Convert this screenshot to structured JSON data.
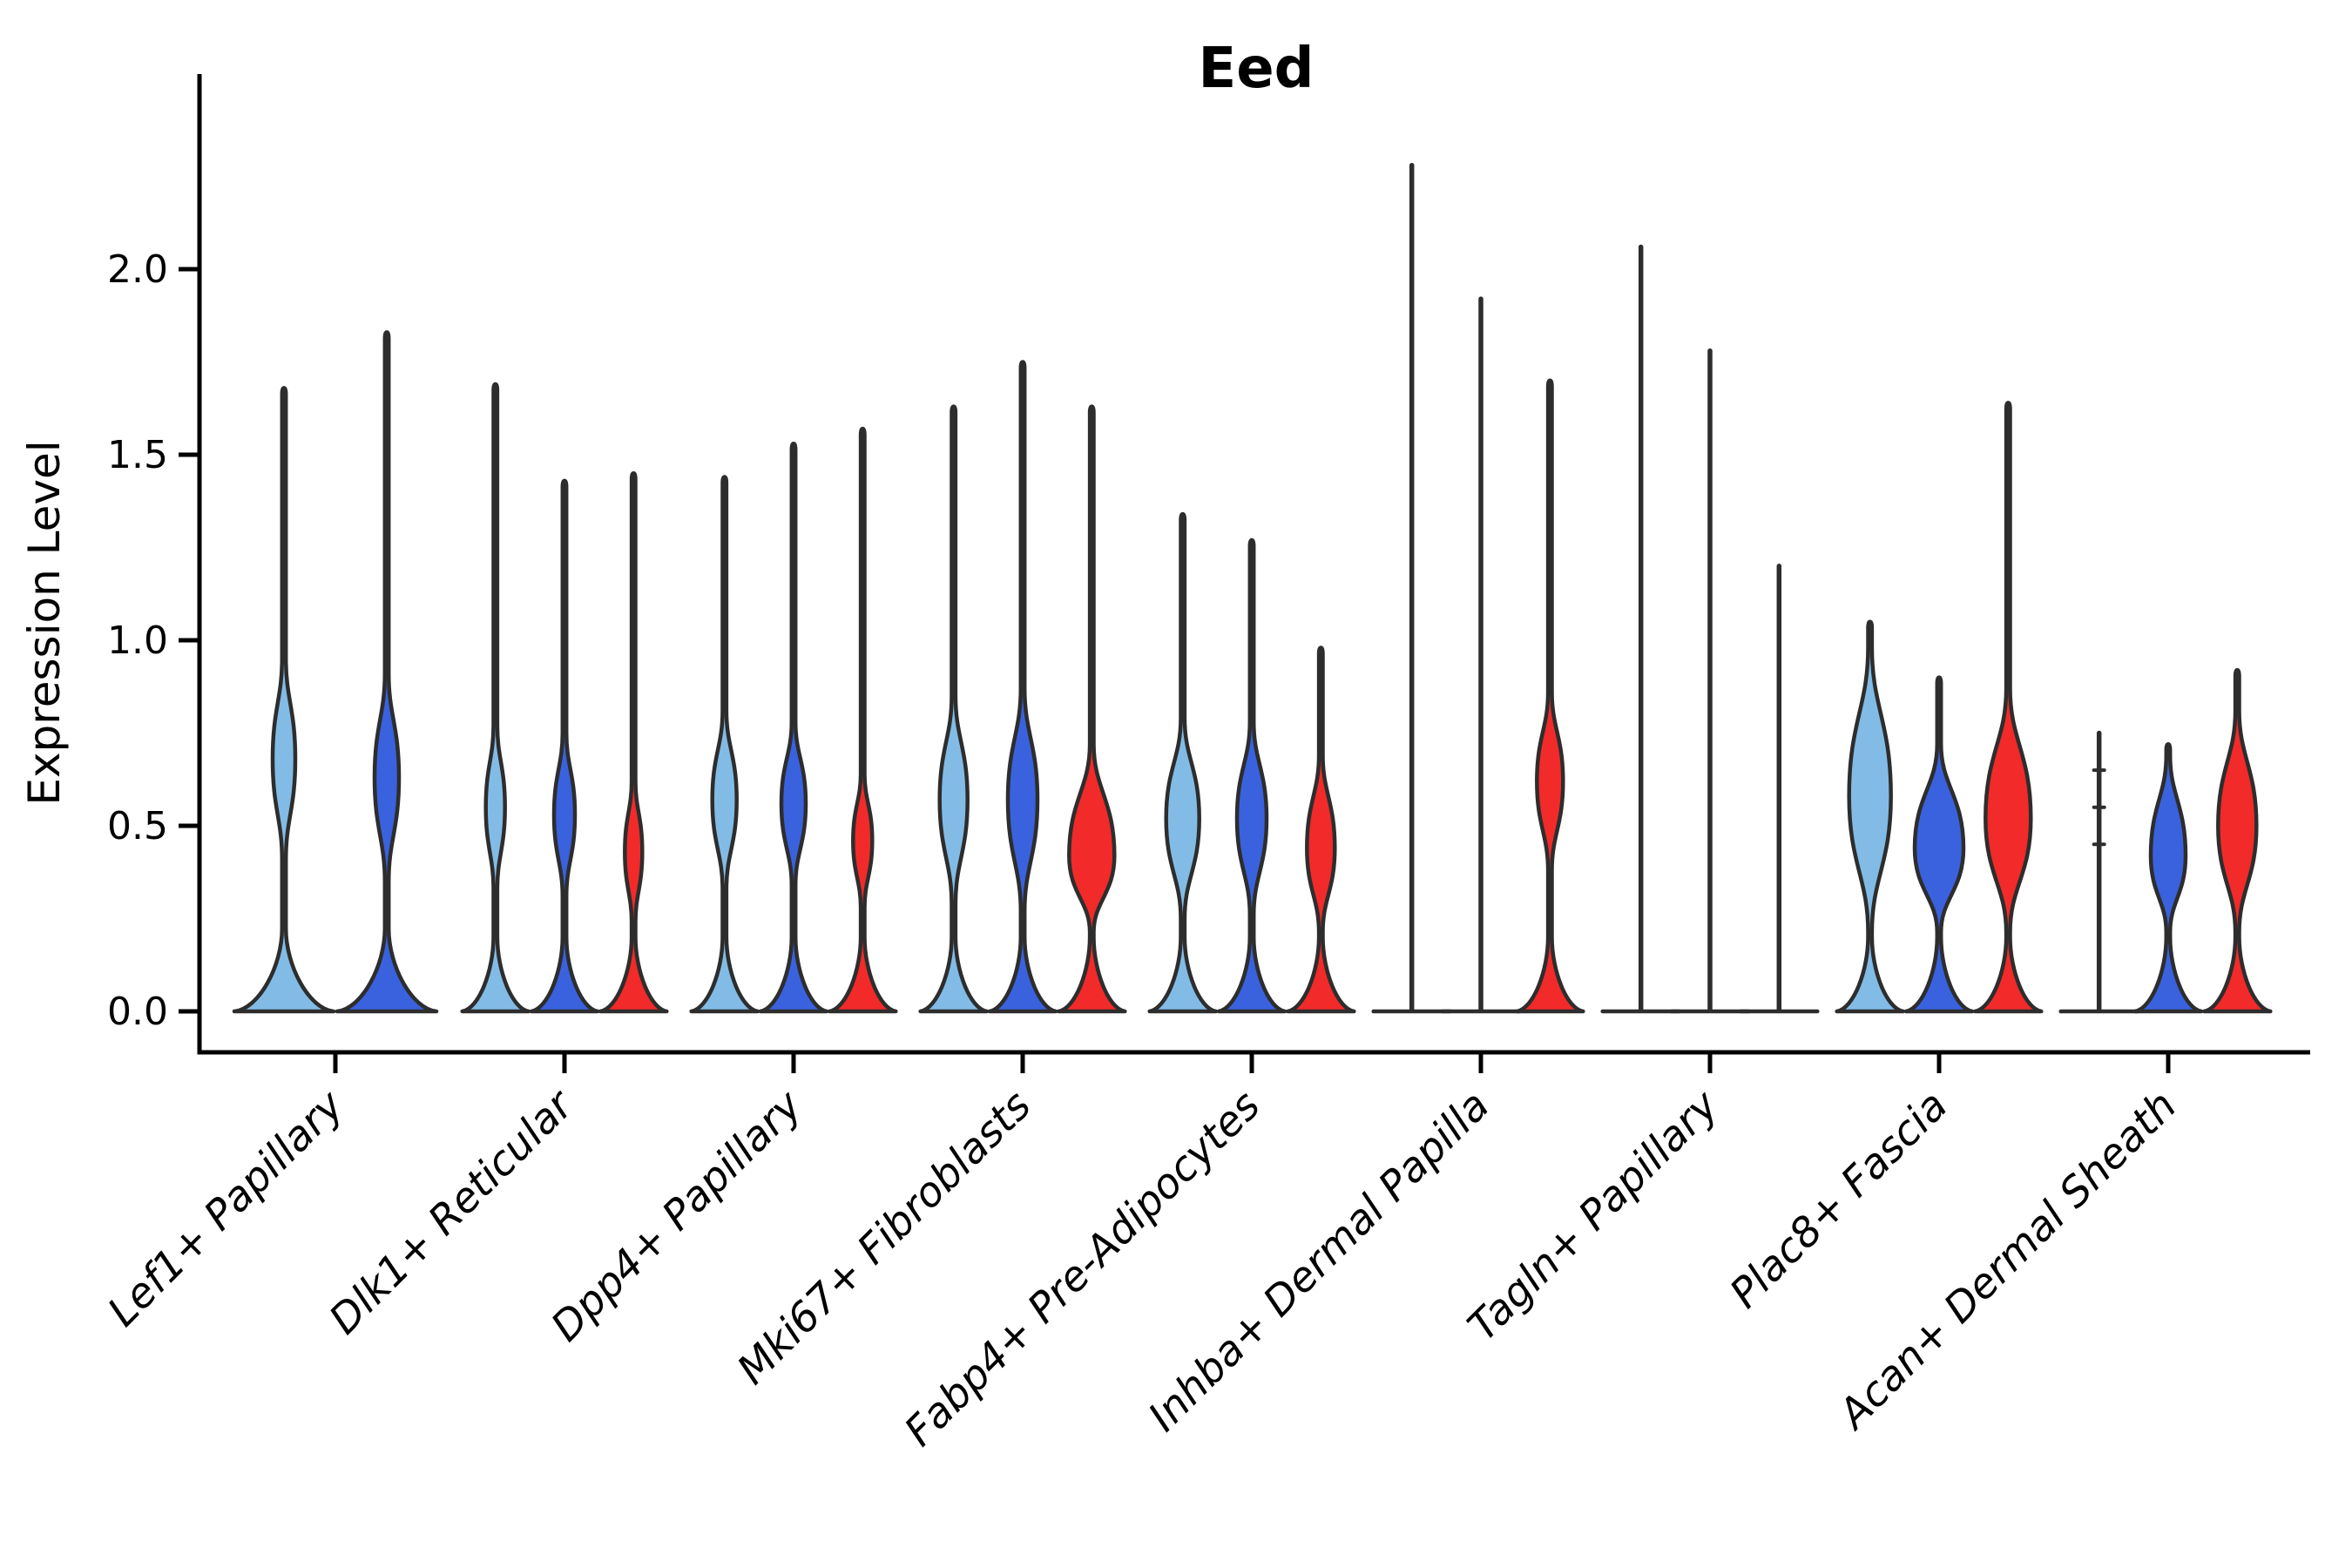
{
  "chart_data": {
    "type": "violin",
    "title": "Eed",
    "ylabel": "Expression Level",
    "xlabel": "",
    "yticks": [
      "0.0",
      "0.5",
      "1.0",
      "1.5",
      "2.0"
    ],
    "ytick_values": [
      0.0,
      0.5,
      1.0,
      1.5,
      2.0
    ],
    "ylim": [
      -0.11,
      2.52
    ],
    "grid": false,
    "legend": "none",
    "categories": [
      "Lef1+ Papillary",
      "Dlk1+ Reticular",
      "Dpp4+ Papillary",
      "Mki67+ Fibroblasts",
      "Fabp4+ Pre-Adipocytes",
      "Inhba+ Dermal Papilla",
      "Tagln+ Papillary",
      "Plac8+ Fascia",
      "Acan+ Dermal Sheath"
    ],
    "series_colors": {
      "light_blue": "#82BCE6",
      "dark_blue": "#3A62DE",
      "red": "#F22A2A"
    },
    "outline_color": "#2d2d2d",
    "groups": [
      {
        "category": "Lef1+ Papillary",
        "violins": [
          {
            "color": "light_blue",
            "shape": "violin",
            "max": 1.68,
            "bulge": {
              "center": 0.68,
              "half": 0.27,
              "hw": 13
            }
          },
          {
            "color": "dark_blue",
            "shape": "violin",
            "max": 1.83,
            "bulge": {
              "center": 0.63,
              "half": 0.28,
              "hw": 14
            }
          }
        ]
      },
      {
        "category": "Dlk1+ Reticular",
        "violins": [
          {
            "color": "light_blue",
            "shape": "violin",
            "max": 1.69,
            "bulge": {
              "center": 0.55,
              "half": 0.22,
              "hw": 11
            }
          },
          {
            "color": "dark_blue",
            "shape": "violin",
            "max": 1.43,
            "bulge": {
              "center": 0.53,
              "half": 0.22,
              "hw": 12
            }
          },
          {
            "color": "red",
            "shape": "violin",
            "max": 1.45,
            "bulge": {
              "center": 0.43,
              "half": 0.19,
              "hw": 10
            }
          }
        ]
      },
      {
        "category": "Dpp4+ Papillary",
        "violins": [
          {
            "color": "light_blue",
            "shape": "violin",
            "max": 1.44,
            "bulge": {
              "center": 0.57,
              "half": 0.24,
              "hw": 14
            }
          },
          {
            "color": "dark_blue",
            "shape": "violin",
            "max": 1.53,
            "bulge": {
              "center": 0.56,
              "half": 0.22,
              "hw": 14
            }
          },
          {
            "color": "red",
            "shape": "violin",
            "max": 1.57,
            "bulge": {
              "center": 0.46,
              "half": 0.18,
              "hw": 11
            }
          }
        ]
      },
      {
        "category": "Mki67+ Fibroblasts",
        "violins": [
          {
            "color": "light_blue",
            "shape": "violin",
            "max": 1.63,
            "bulge": {
              "center": 0.57,
              "half": 0.28,
              "hw": 16
            }
          },
          {
            "color": "dark_blue",
            "shape": "violin",
            "max": 1.75,
            "bulge": {
              "center": 0.57,
              "half": 0.3,
              "hw": 17
            }
          },
          {
            "color": "red",
            "shape": "violin",
            "max": 1.63,
            "bulge": {
              "center": 0.42,
              "half": 0.3,
              "hw": 26
            }
          }
        ]
      },
      {
        "category": "Fabp4+ Pre-Adipocytes",
        "violins": [
          {
            "color": "light_blue",
            "shape": "violin",
            "max": 1.34,
            "bulge": {
              "center": 0.52,
              "half": 0.27,
              "hw": 19
            }
          },
          {
            "color": "dark_blue",
            "shape": "violin",
            "max": 1.27,
            "bulge": {
              "center": 0.52,
              "half": 0.26,
              "hw": 17
            }
          },
          {
            "color": "red",
            "shape": "violin",
            "max": 0.98,
            "bulge": {
              "center": 0.44,
              "half": 0.25,
              "hw": 16
            }
          }
        ]
      },
      {
        "category": "Inhba+ Dermal Papilla",
        "violins": [
          {
            "color": "light_blue",
            "shape": "spike",
            "max": 2.28
          },
          {
            "color": "dark_blue",
            "shape": "spike",
            "max": 1.92
          },
          {
            "color": "red",
            "shape": "violin",
            "max": 1.7,
            "bulge": {
              "center": 0.62,
              "half": 0.24,
              "hw": 15
            }
          }
        ]
      },
      {
        "category": "Tagln+ Papillary",
        "violins": [
          {
            "color": "light_blue",
            "shape": "spike",
            "max": 2.06
          },
          {
            "color": "dark_blue",
            "shape": "spike",
            "max": 1.78
          },
          {
            "color": "red",
            "shape": "spike",
            "max": 1.2
          }
        ]
      },
      {
        "category": "Plac8+ Fascia",
        "violins": [
          {
            "color": "light_blue",
            "shape": "violin",
            "max": 1.05,
            "bulge": {
              "center": 0.58,
              "half": 0.4,
              "hw": 24
            }
          },
          {
            "color": "dark_blue",
            "shape": "violin",
            "max": 0.9,
            "bulge": {
              "center": 0.44,
              "half": 0.28,
              "hw": 28
            }
          },
          {
            "color": "red",
            "shape": "violin",
            "max": 1.64,
            "bulge": {
              "center": 0.52,
              "half": 0.35,
              "hw": 26
            }
          }
        ]
      },
      {
        "category": "Acan+ Dermal Sheath",
        "violins": [
          {
            "color": "light_blue",
            "shape": "spike",
            "max": 0.75,
            "nubs": [
              0.45,
              0.55,
              0.65
            ]
          },
          {
            "color": "dark_blue",
            "shape": "violin",
            "max": 0.72,
            "bulge": {
              "center": 0.42,
              "half": 0.27,
              "hw": 20
            }
          },
          {
            "color": "red",
            "shape": "violin",
            "max": 0.92,
            "bulge": {
              "center": 0.5,
              "half": 0.31,
              "hw": 22
            }
          }
        ]
      }
    ]
  }
}
